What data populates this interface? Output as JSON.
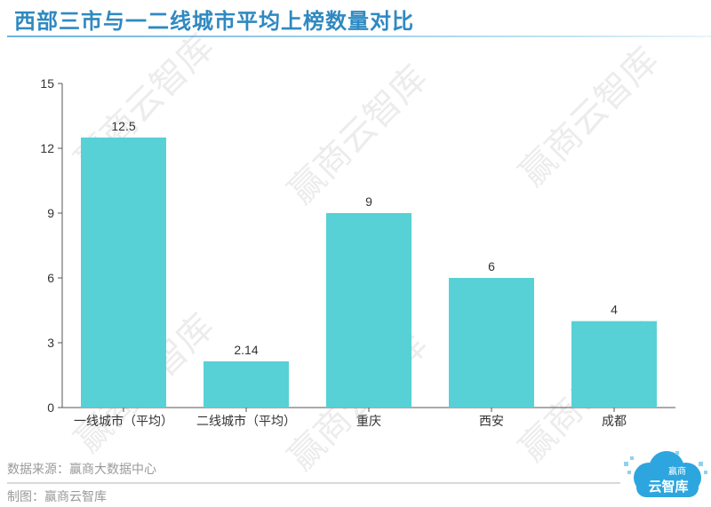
{
  "title": "西部三市与一二线城市平均上榜数量对比",
  "chart_data": {
    "type": "bar",
    "categories": [
      "一线城市（平均）",
      "二线城市（平均）",
      "重庆",
      "西安",
      "成都"
    ],
    "values": [
      12.5,
      2.14,
      9,
      6,
      4
    ],
    "value_labels": [
      "12.5",
      "2.14",
      "9",
      "6",
      "4"
    ],
    "ylim": [
      0,
      15
    ],
    "yticks": [
      0,
      3,
      6,
      9,
      12,
      15
    ],
    "bar_color": "#57d1d5",
    "grid": false
  },
  "watermark": "赢商云智库",
  "footer": {
    "source": "数据来源：赢商大数据中心",
    "made_by": "制图：赢商云智库"
  },
  "logo": {
    "top_text": "赢商",
    "main_text": "云智库"
  },
  "colors": {
    "title": "#2f89c1",
    "logo_blue": "#2da6df"
  }
}
